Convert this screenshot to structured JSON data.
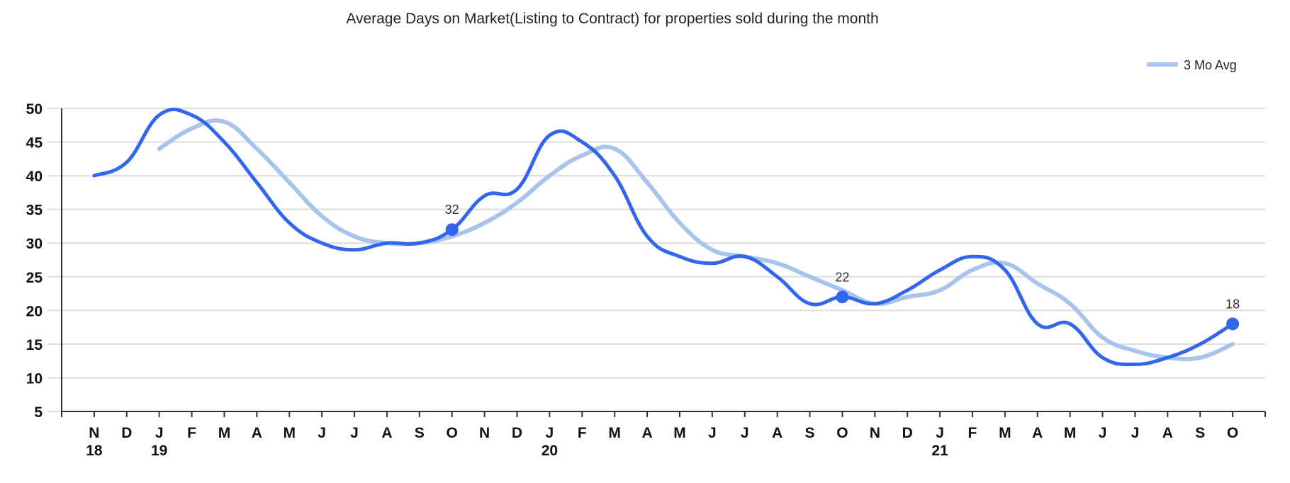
{
  "chart_data": {
    "type": "line",
    "title": "Average Days on Market(Listing to Contract) for properties sold during the month",
    "xlabel": "",
    "ylabel": "",
    "ylim": [
      5,
      50
    ],
    "yticks": [
      5,
      10,
      15,
      20,
      25,
      30,
      35,
      40,
      45,
      50
    ],
    "grid": true,
    "legend_position": "top-right",
    "x_month_labels": [
      "N",
      "D",
      "J",
      "F",
      "M",
      "A",
      "M",
      "J",
      "J",
      "A",
      "S",
      "O",
      "N",
      "D",
      "J",
      "F",
      "M",
      "A",
      "M",
      "J",
      "J",
      "A",
      "S",
      "O",
      "N",
      "D",
      "J",
      "F",
      "M",
      "A",
      "M",
      "J",
      "J",
      "A",
      "S",
      "O"
    ],
    "x_year_labels": [
      {
        "index": 0,
        "label": "18"
      },
      {
        "index": 2,
        "label": "19"
      },
      {
        "index": 14,
        "label": "20"
      },
      {
        "index": 26,
        "label": "21"
      }
    ],
    "series": [
      {
        "name": "Average Days on Market",
        "color": "#3366ee",
        "show_in_legend": false,
        "start_index": 0,
        "values": [
          40,
          42,
          49,
          49,
          45,
          39,
          33,
          30,
          29,
          30,
          30,
          32,
          37,
          38,
          46,
          45,
          40,
          31,
          28,
          27,
          28,
          25,
          21,
          22,
          21,
          23,
          26,
          28,
          26,
          18,
          18,
          13,
          12,
          13,
          15,
          18
        ],
        "labeled_points": [
          11,
          23,
          35
        ]
      },
      {
        "name": "3 Mo Avg",
        "color": "#a8c4ec",
        "show_in_legend": true,
        "start_index": 2,
        "values": [
          44,
          47,
          48,
          44,
          39,
          34,
          31,
          30,
          30,
          31,
          33,
          36,
          40,
          43,
          44,
          39,
          33,
          29,
          28,
          27,
          25,
          23,
          21,
          22,
          23,
          26,
          27,
          24,
          21,
          16,
          14,
          13,
          13,
          15
        ],
        "labeled_points": []
      }
    ]
  }
}
